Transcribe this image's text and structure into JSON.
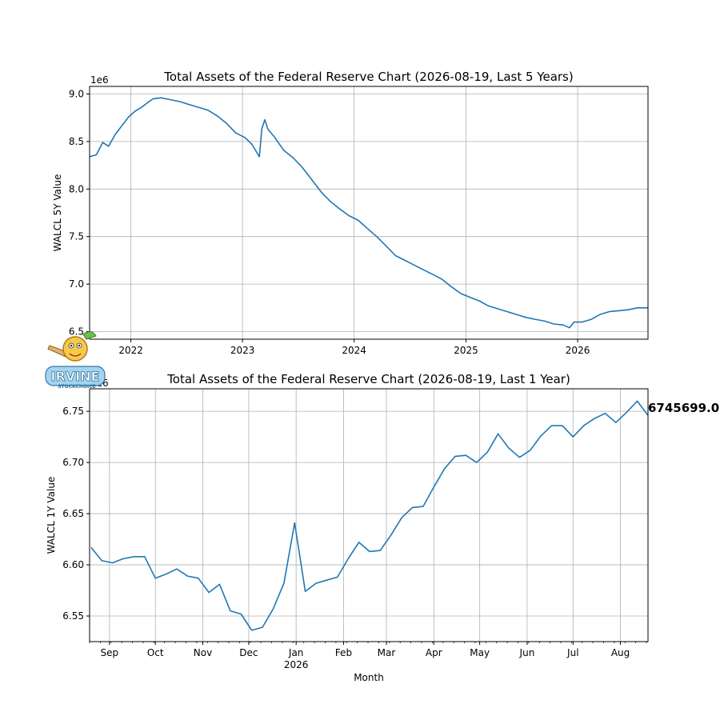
{
  "chart_data": [
    {
      "type": "line",
      "title": "Total Assets of the Federal Reserve Chart (2026-08-19, Last 5 Years)",
      "ylabel": "WALCL 5Y Value",
      "xlabel": "",
      "offset_text": "1e6",
      "grid": true,
      "x_ticks": [
        "2022",
        "2023",
        "2024",
        "2025",
        "2026"
      ],
      "y_ticks": [
        "6.5",
        "7.0",
        "7.5",
        "8.0",
        "8.5",
        "9.0"
      ],
      "xlim": [
        "2021-08-19",
        "2026-08-19"
      ],
      "ylim": [
        6.42,
        9.08
      ],
      "series": [
        {
          "color": "#1f77b4",
          "x": [
            "2021-08-19",
            "2021-09-10",
            "2021-10-01",
            "2021-10-20",
            "2021-11-10",
            "2021-12-01",
            "2021-12-25",
            "2022-01-15",
            "2022-02-05",
            "2022-02-25",
            "2022-03-15",
            "2022-04-10",
            "2022-05-10",
            "2022-06-10",
            "2022-07-10",
            "2022-08-10",
            "2022-09-10",
            "2022-10-10",
            "2022-11-10",
            "2022-12-10",
            "2023-01-10",
            "2023-02-01",
            "2023-02-25",
            "2023-03-05",
            "2023-03-15",
            "2023-03-25",
            "2023-04-15",
            "2023-05-15",
            "2023-06-15",
            "2023-07-15",
            "2023-08-15",
            "2023-09-15",
            "2023-10-15",
            "2023-11-15",
            "2023-12-15",
            "2024-01-15",
            "2024-02-15",
            "2024-03-15",
            "2024-04-15",
            "2024-05-15",
            "2024-06-15",
            "2024-07-15",
            "2024-08-15",
            "2024-09-15",
            "2024-10-15",
            "2024-11-15",
            "2024-12-15",
            "2025-01-15",
            "2025-02-15",
            "2025-03-15",
            "2025-04-15",
            "2025-05-15",
            "2025-06-15",
            "2025-07-15",
            "2025-08-15",
            "2025-09-15",
            "2025-10-15",
            "2025-11-15",
            "2025-12-05",
            "2025-12-20",
            "2026-01-15",
            "2026-02-15",
            "2026-03-15",
            "2026-04-15",
            "2026-05-15",
            "2026-06-15",
            "2026-07-15",
            "2026-08-19"
          ],
          "y": [
            8.34,
            8.36,
            8.49,
            8.45,
            8.57,
            8.66,
            8.76,
            8.82,
            8.86,
            8.91,
            8.95,
            8.96,
            8.94,
            8.92,
            8.89,
            8.86,
            8.83,
            8.77,
            8.69,
            8.59,
            8.54,
            8.47,
            8.34,
            8.63,
            8.73,
            8.63,
            8.55,
            8.41,
            8.33,
            8.23,
            8.1,
            7.97,
            7.87,
            7.79,
            7.72,
            7.67,
            7.58,
            7.5,
            7.4,
            7.3,
            7.25,
            7.2,
            7.15,
            7.1,
            7.05,
            6.97,
            6.9,
            6.86,
            6.82,
            6.77,
            6.74,
            6.71,
            6.68,
            6.65,
            6.63,
            6.61,
            6.58,
            6.57,
            6.54,
            6.6,
            6.6,
            6.63,
            6.68,
            6.71,
            6.72,
            6.73,
            6.75,
            6.75
          ]
        }
      ]
    },
    {
      "type": "line",
      "title": "Total Assets of the Federal Reserve Chart (2026-08-19, Last 1 Year)",
      "ylabel": "WALCL 1Y Value",
      "xlabel": "Month",
      "offset_text": "1e6",
      "grid": true,
      "x_ticks": [
        {
          "date": "2025-09-01",
          "label": "Sep"
        },
        {
          "date": "2025-10-01",
          "label": "Oct"
        },
        {
          "date": "2025-11-01",
          "label": "Nov"
        },
        {
          "date": "2025-12-01",
          "label": "Dec"
        },
        {
          "date": "2026-01-01",
          "label": "Jan",
          "sub": "2026"
        },
        {
          "date": "2026-02-01",
          "label": "Feb"
        },
        {
          "date": "2026-03-01",
          "label": "Mar"
        },
        {
          "date": "2026-04-01",
          "label": "Apr"
        },
        {
          "date": "2026-05-01",
          "label": "May"
        },
        {
          "date": "2026-06-01",
          "label": "Jun"
        },
        {
          "date": "2026-07-01",
          "label": "Jul"
        },
        {
          "date": "2026-08-01",
          "label": "Aug"
        }
      ],
      "y_ticks": [
        "6.55",
        "6.60",
        "6.65",
        "6.70",
        "6.75"
      ],
      "xlim": [
        "2025-08-19",
        "2026-08-19"
      ],
      "ylim": [
        6.525,
        6.772
      ],
      "last_value_label": "6745699.0",
      "series": [
        {
          "color": "#1f77b4",
          "x": [
            "2025-08-20",
            "2025-08-27",
            "2025-09-03",
            "2025-09-10",
            "2025-09-17",
            "2025-09-24",
            "2025-10-01",
            "2025-10-08",
            "2025-10-15",
            "2025-10-22",
            "2025-10-29",
            "2025-11-05",
            "2025-11-12",
            "2025-11-19",
            "2025-11-26",
            "2025-12-03",
            "2025-12-10",
            "2025-12-17",
            "2025-12-24",
            "2025-12-31",
            "2026-01-07",
            "2026-01-14",
            "2026-01-21",
            "2026-01-28",
            "2026-02-04",
            "2026-02-11",
            "2026-02-18",
            "2026-02-25",
            "2026-03-04",
            "2026-03-11",
            "2026-03-18",
            "2026-03-25",
            "2026-04-01",
            "2026-04-08",
            "2026-04-15",
            "2026-04-22",
            "2026-04-29",
            "2026-05-06",
            "2026-05-13",
            "2026-05-20",
            "2026-05-27",
            "2026-06-03",
            "2026-06-10",
            "2026-06-17",
            "2026-06-24",
            "2026-07-01",
            "2026-07-08",
            "2026-07-15",
            "2026-07-22",
            "2026-07-29",
            "2026-08-05",
            "2026-08-12",
            "2026-08-19"
          ],
          "y": [
            6.617,
            6.604,
            6.602,
            6.606,
            6.608,
            6.608,
            6.587,
            6.591,
            6.596,
            6.589,
            6.587,
            6.573,
            6.581,
            6.555,
            6.552,
            6.536,
            6.539,
            6.557,
            6.582,
            6.641,
            6.574,
            6.582,
            6.585,
            6.588,
            6.606,
            6.622,
            6.613,
            6.614,
            6.629,
            6.646,
            6.656,
            6.657,
            6.676,
            6.694,
            6.706,
            6.707,
            6.7,
            6.71,
            6.728,
            6.714,
            6.705,
            6.712,
            6.726,
            6.736,
            6.736,
            6.725,
            6.736,
            6.743,
            6.748,
            6.739,
            6.749,
            6.76,
            6.746
          ]
        }
      ]
    }
  ],
  "logo": {
    "text": "IRVINE",
    "subtext": "STOCKCHOICE",
    "icon": "pencil-character-logo"
  }
}
